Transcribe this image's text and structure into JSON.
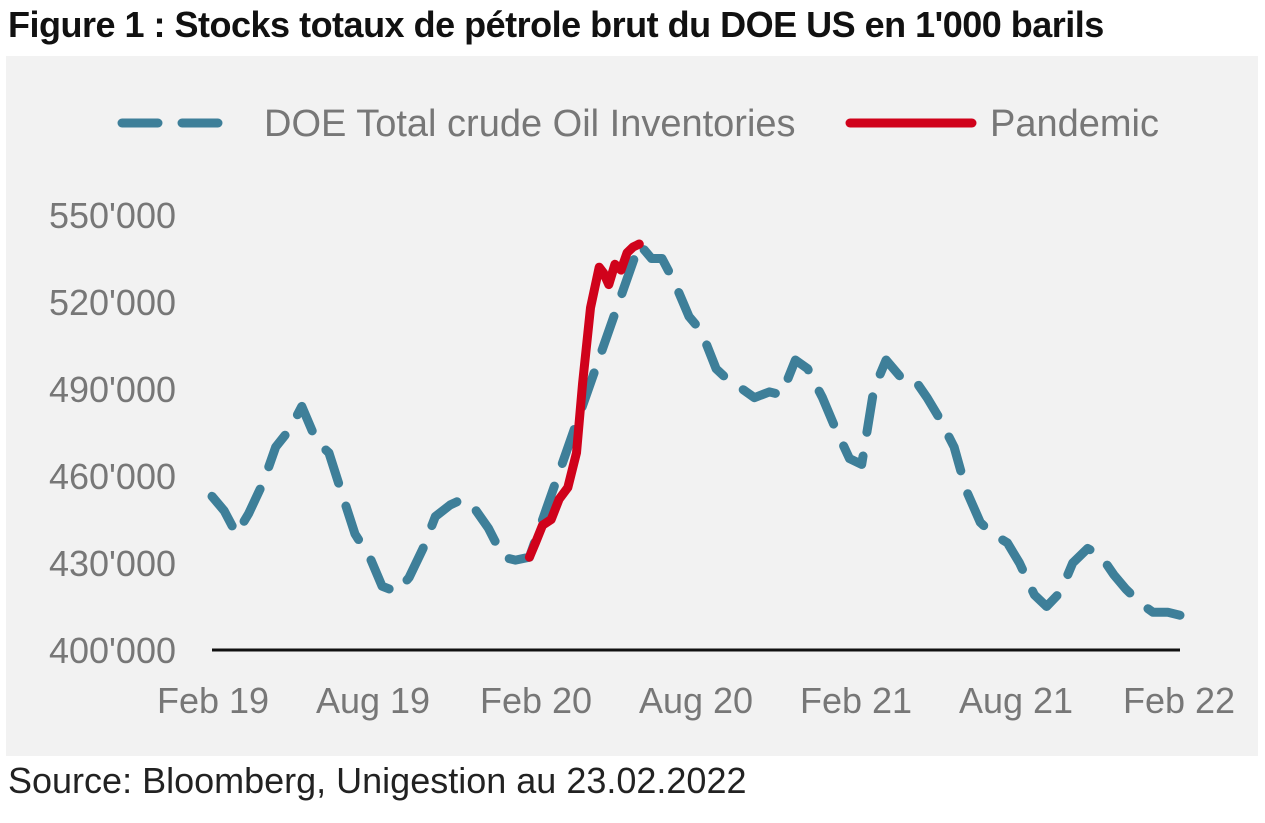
{
  "figure": {
    "title": "Figure 1 : Stocks totaux de pétrole brut du DOE US en 1'000 barils",
    "source": "Source: Bloomberg, Unigestion au 23.02.2022"
  },
  "chart_data": {
    "type": "line",
    "title": "Figure 1 : Stocks totaux de pétrole brut du DOE US en 1'000 barils",
    "xlabel": "",
    "ylabel": "",
    "ylim": [
      400000,
      550000
    ],
    "yticks": [
      "400'000",
      "430'000",
      "460'000",
      "490'000",
      "520'000",
      "550'000"
    ],
    "xticks": [
      "Feb 19",
      "Aug 19",
      "Feb 20",
      "Aug 20",
      "Feb 21",
      "Aug 21",
      "Feb 22"
    ],
    "grid": false,
    "legend_position": "top",
    "series": [
      {
        "name": "DOE Total crude Oil Inventories",
        "color": "#3e7f99",
        "style": "dashed",
        "x": [
          "2019-02-01",
          "2019-02-15",
          "2019-03-01",
          "2019-03-15",
          "2019-04-01",
          "2019-04-15",
          "2019-05-01",
          "2019-05-15",
          "2019-06-01",
          "2019-06-15",
          "2019-07-01",
          "2019-07-15",
          "2019-08-01",
          "2019-08-15",
          "2019-09-01",
          "2019-09-15",
          "2019-10-01",
          "2019-10-15",
          "2019-11-01",
          "2019-11-15",
          "2019-12-01",
          "2019-12-15",
          "2020-01-01",
          "2020-01-15",
          "2020-01-31",
          "2020-06-05",
          "2020-06-19",
          "2020-07-01",
          "2020-07-15",
          "2020-08-01",
          "2020-08-15",
          "2020-09-01",
          "2020-09-15",
          "2020-10-01",
          "2020-10-15",
          "2020-11-01",
          "2020-11-15",
          "2020-12-01",
          "2020-12-15",
          "2021-01-01",
          "2021-01-15",
          "2021-02-01",
          "2021-02-15",
          "2021-03-01",
          "2021-03-15",
          "2021-04-01",
          "2021-04-15",
          "2021-05-01",
          "2021-05-15",
          "2021-06-01",
          "2021-06-15",
          "2021-07-01",
          "2021-07-15",
          "2021-08-01",
          "2021-08-15",
          "2021-09-01",
          "2021-09-15",
          "2021-10-01",
          "2021-10-15",
          "2021-11-01",
          "2021-11-15",
          "2021-12-01",
          "2021-12-15",
          "2022-01-01",
          "2022-01-15",
          "2022-02-01",
          "2022-02-15"
        ],
        "values": [
          453000,
          448000,
          440000,
          447000,
          458000,
          470000,
          476000,
          484000,
          472000,
          468000,
          453000,
          440000,
          432000,
          422000,
          420000,
          425000,
          435000,
          446000,
          450000,
          452000,
          448000,
          442000,
          432000,
          431000,
          432000,
          540000,
          535000,
          535000,
          527000,
          515000,
          510000,
          497000,
          493000,
          490000,
          487000,
          489000,
          488000,
          500000,
          497000,
          487000,
          477000,
          466000,
          464000,
          490000,
          500000,
          494000,
          494000,
          487000,
          480000,
          470000,
          455000,
          444000,
          440000,
          437000,
          430000,
          419000,
          415000,
          420000,
          430000,
          435000,
          433000,
          426000,
          421000,
          416000,
          413000,
          413000,
          412000
        ]
      },
      {
        "name": "Pandemic",
        "color": "#d0021b",
        "style": "solid",
        "x": [
          "2020-01-31",
          "2020-02-07",
          "2020-02-15",
          "2020-02-25",
          "2020-03-05",
          "2020-03-15",
          "2020-03-25",
          "2020-04-01",
          "2020-04-10",
          "2020-04-20",
          "2020-04-25",
          "2020-05-01",
          "2020-05-08",
          "2020-05-15",
          "2020-05-22",
          "2020-05-29",
          "2020-06-05"
        ],
        "values": [
          432000,
          437000,
          443000,
          445000,
          452000,
          456000,
          468000,
          492000,
          518000,
          532000,
          530000,
          526000,
          533000,
          531000,
          537000,
          539000,
          540000
        ]
      }
    ]
  }
}
